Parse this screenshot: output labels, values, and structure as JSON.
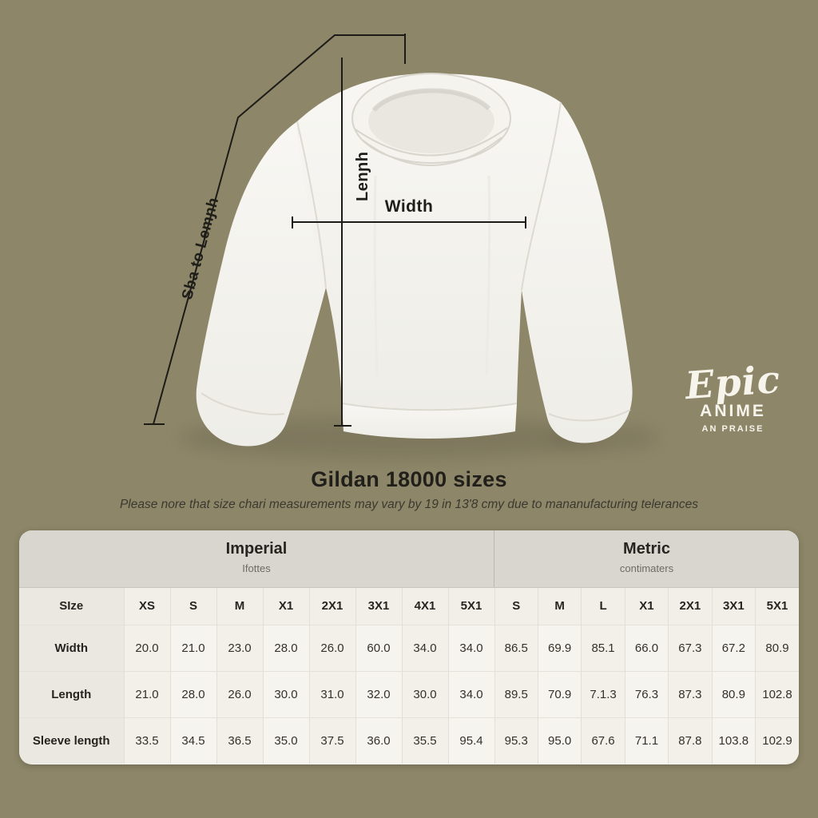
{
  "hero": {
    "measurements": {
      "width_label": "Width",
      "length_label": "Lenɲh",
      "shoulder_label": "Sba to Lemɲh"
    },
    "logo": {
      "script": "Epic",
      "line2": "ANIME",
      "line3": "AN PRAISE"
    }
  },
  "title": "Gildan 18000 sizes",
  "disclaimer": "Please nore that size chari measurements may vary by 19 in 13'8 cmy due to mananufacturing telerances",
  "table": {
    "groups": [
      {
        "label": "Imperial",
        "sublabel": "Ifottes"
      },
      {
        "label": "Metric",
        "sublabel": "contimaters"
      }
    ],
    "columns": [
      "SIze",
      "XS",
      "S",
      "M",
      "X1",
      "2X1",
      "3X1",
      "4X1",
      "5X1",
      "S",
      "M",
      "L",
      "X1",
      "2X1",
      "3X1",
      "5X1"
    ],
    "rows": [
      {
        "label": "Width",
        "values": [
          "20.0",
          "21.0",
          "23.0",
          "28.0",
          "26.0",
          "60.0",
          "34.0",
          "34.0",
          "86.5",
          "69.9",
          "85.1",
          "66.0",
          "67.3",
          "67.2",
          "80.9"
        ]
      },
      {
        "label": "Length",
        "values": [
          "21.0",
          "28.0",
          "26.0",
          "30.0",
          "31.0",
          "32.0",
          "30.0",
          "34.0",
          "89.5",
          "70.9",
          "7.1.3",
          "76.3",
          "87.3",
          "80.9",
          "102.8"
        ]
      },
      {
        "label": "Sleeve length",
        "values": [
          "33.5",
          "34.5",
          "36.5",
          "35.0",
          "37.5",
          "36.0",
          "35.5",
          "95.4",
          "95.3",
          "95.0",
          "67.6",
          "71.1",
          "87.8",
          "103.8",
          "102.9"
        ]
      }
    ]
  },
  "colors": {
    "background": "#8d8669",
    "table_bg": "#f4f2ec",
    "band_bg": "#d9d6cf",
    "text_dark": "#262420",
    "logo_text": "#f7f4eb",
    "measure_line": "#1c1b17"
  }
}
